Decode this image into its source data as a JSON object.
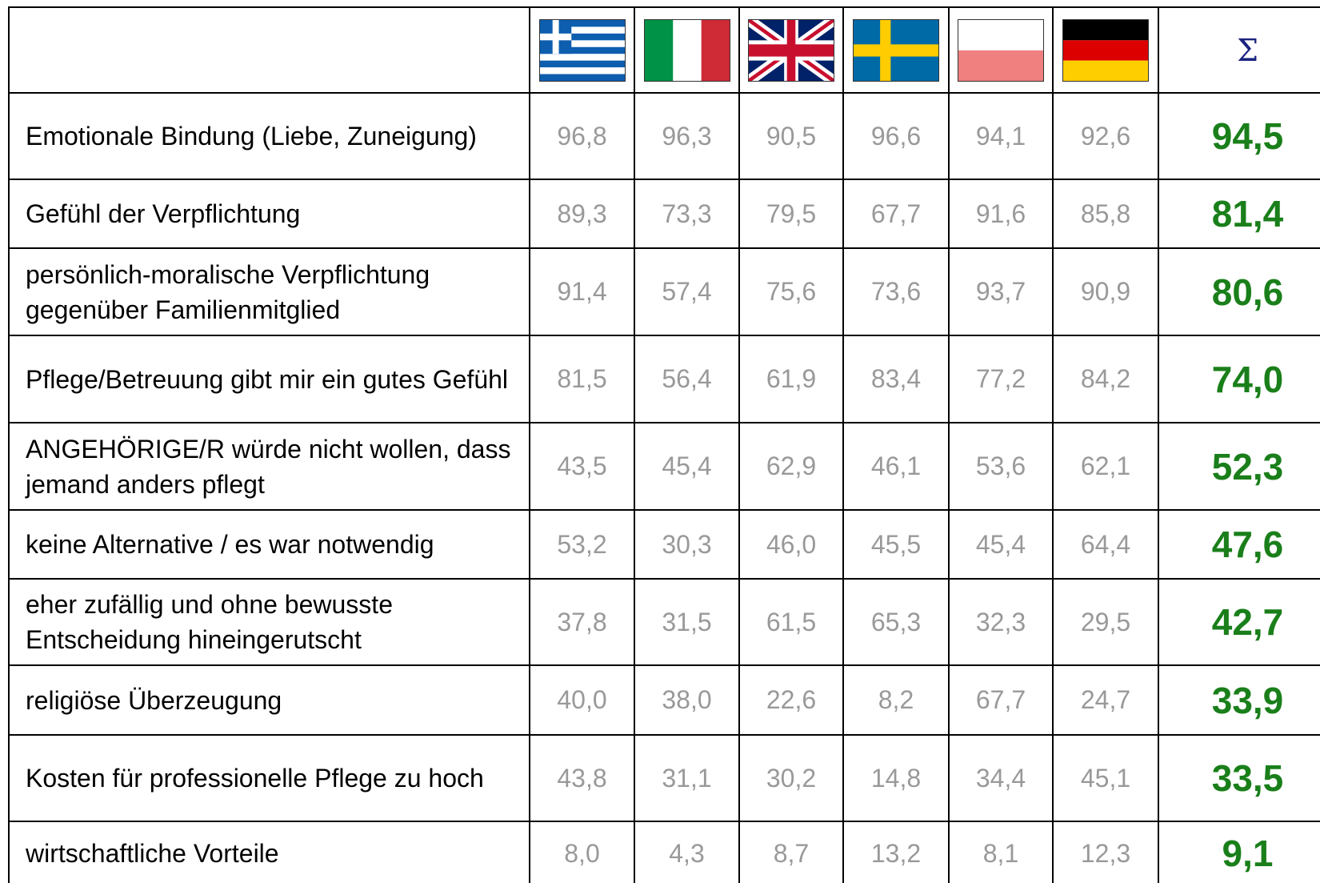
{
  "header": {
    "sum_symbol": "Σ"
  },
  "rows": [
    {
      "label": "Emotionale Bindung (Liebe, Zuneigung)",
      "values": [
        "96,8",
        "96,3",
        "90,5",
        "96,6",
        "94,1",
        "92,6"
      ],
      "total": "94,5"
    },
    {
      "label": "Gefühl der Verpflichtung",
      "values": [
        "89,3",
        "73,3",
        "79,5",
        "67,7",
        "91,6",
        "85,8"
      ],
      "total": "81,4"
    },
    {
      "label": "persönlich-moralische Verpflichtung gegenüber Familienmitglied",
      "values": [
        "91,4",
        "57,4",
        "75,6",
        "73,6",
        "93,7",
        "90,9"
      ],
      "total": "80,6"
    },
    {
      "label": "Pflege/Betreuung gibt mir ein gutes Gefühl",
      "values": [
        "81,5",
        "56,4",
        "61,9",
        "83,4",
        "77,2",
        "84,2"
      ],
      "total": "74,0"
    },
    {
      "label": "ANGEHÖRIGE/R würde nicht wollen, dass jemand anders pflegt",
      "values": [
        "43,5",
        "45,4",
        "62,9",
        "46,1",
        "53,6",
        "62,1"
      ],
      "total": "52,3"
    },
    {
      "label": "keine Alternative / es war notwendig",
      "values": [
        "53,2",
        "30,3",
        "46,0",
        "45,5",
        "45,4",
        "64,4"
      ],
      "total": "47,6"
    },
    {
      "label": "eher zufällig und ohne bewusste Entscheidung hineingerutscht",
      "values": [
        "37,8",
        "31,5",
        "61,5",
        "65,3",
        "32,3",
        "29,5"
      ],
      "total": "42,7"
    },
    {
      "label": "religiöse Überzeugung",
      "values": [
        "40,0",
        "38,0",
        "22,6",
        "8,2",
        "67,7",
        "24,7"
      ],
      "total": "33,9"
    },
    {
      "label": "Kosten für professionelle Pflege zu hoch",
      "values": [
        "43,8",
        "31,1",
        "30,2",
        "14,8",
        "34,4",
        "45,1"
      ],
      "total": "33,5"
    },
    {
      "label": "wirtschaftliche Vorteile",
      "values": [
        "8,0",
        "4,3",
        "8,7",
        "13,2",
        "8,1",
        "12,3"
      ],
      "total": "9,1"
    }
  ]
}
